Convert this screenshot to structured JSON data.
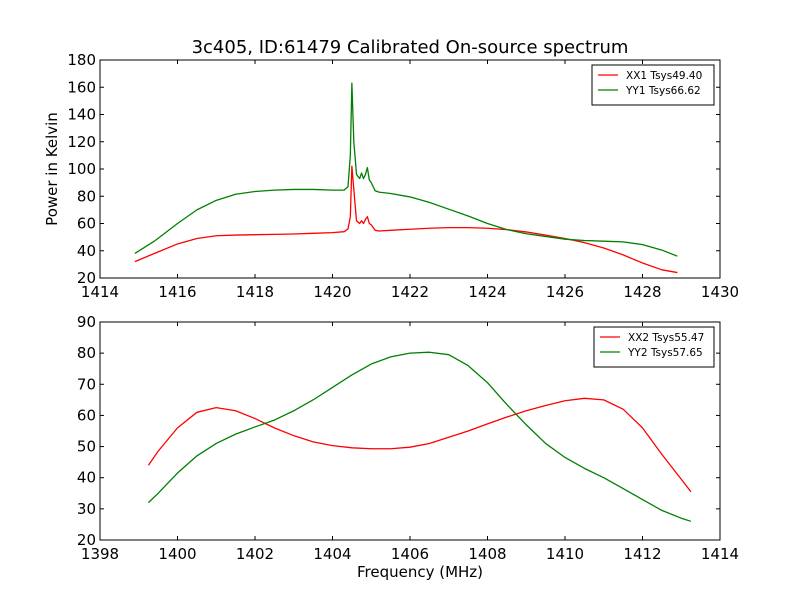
{
  "title": "3c405, ID:61479 Calibrated On-source spectrum",
  "chart_data": [
    {
      "type": "line",
      "title": "3c405, ID:61479 Calibrated On-source spectrum",
      "xlabel": "",
      "ylabel": "Power in Kelvin",
      "xlim": [
        1414,
        1430
      ],
      "ylim": [
        20,
        180
      ],
      "xticks": [
        "1414",
        "1416",
        "1418",
        "1420",
        "1422",
        "1424",
        "1426",
        "1428",
        "1430"
      ],
      "yticks": [
        "20",
        "40",
        "60",
        "80",
        "100",
        "120",
        "140",
        "160",
        "180"
      ],
      "grid": false,
      "legend_position": "top-right",
      "series": [
        {
          "name": "XX1 Tsys49.40",
          "color": "#ff0000",
          "x": [
            1414.9,
            1415.4,
            1416.0,
            1416.5,
            1417.0,
            1417.5,
            1418.0,
            1418.5,
            1419.0,
            1419.5,
            1420.0,
            1420.3,
            1420.4,
            1420.46,
            1420.5,
            1420.55,
            1420.62,
            1420.7,
            1420.75,
            1420.8,
            1420.85,
            1420.9,
            1420.95,
            1421.0,
            1421.1,
            1421.2,
            1421.5,
            1422.0,
            1422.5,
            1423.0,
            1423.5,
            1424.0,
            1424.5,
            1425.0,
            1425.5,
            1426.0,
            1426.5,
            1427.0,
            1427.5,
            1428.0,
            1428.5,
            1428.9
          ],
          "values": [
            32,
            38,
            45,
            49,
            51,
            51.5,
            51.8,
            52,
            52.3,
            52.8,
            53.3,
            54,
            56,
            65,
            102,
            85,
            62,
            60,
            62,
            60,
            63,
            65,
            60,
            59,
            55,
            54.5,
            55,
            55.8,
            56.5,
            57,
            57,
            56.5,
            55.5,
            53.8,
            51.5,
            49,
            46,
            42,
            37,
            31,
            26,
            24
          ]
        },
        {
          "name": "YY1 Tsys66.62",
          "color": "#008000",
          "x": [
            1414.9,
            1415.4,
            1416.0,
            1416.5,
            1417.0,
            1417.5,
            1418.0,
            1418.5,
            1419.0,
            1419.5,
            1420.0,
            1420.3,
            1420.4,
            1420.46,
            1420.5,
            1420.55,
            1420.62,
            1420.7,
            1420.75,
            1420.8,
            1420.85,
            1420.9,
            1420.95,
            1421.0,
            1421.1,
            1421.2,
            1421.5,
            1422.0,
            1422.5,
            1423.0,
            1423.5,
            1424.0,
            1424.5,
            1425.0,
            1425.5,
            1426.0,
            1426.5,
            1427.0,
            1427.5,
            1428.0,
            1428.5,
            1428.9
          ],
          "values": [
            38,
            47,
            60,
            70,
            77,
            81.5,
            83.5,
            84.5,
            85,
            85,
            84.5,
            84.5,
            87,
            110,
            163,
            120,
            96,
            93,
            97,
            93,
            96,
            101,
            92,
            90,
            84,
            83,
            82,
            79.5,
            75.5,
            70.5,
            65.5,
            60,
            55.5,
            52.5,
            50.5,
            48.5,
            47.5,
            47,
            46.5,
            44.5,
            40.5,
            36
          ]
        }
      ]
    },
    {
      "type": "line",
      "title": "",
      "xlabel": "Frequency (MHz)",
      "ylabel": "",
      "xlim": [
        1398,
        1414
      ],
      "ylim": [
        20,
        90
      ],
      "xticks": [
        "1398",
        "1400",
        "1402",
        "1404",
        "1406",
        "1408",
        "1410",
        "1412",
        "1414"
      ],
      "yticks": [
        "20",
        "30",
        "40",
        "50",
        "60",
        "70",
        "80",
        "90"
      ],
      "grid": false,
      "legend_position": "top-right",
      "series": [
        {
          "name": "XX2 Tsys55.47",
          "color": "#ff0000",
          "x": [
            1399.25,
            1399.5,
            1400.0,
            1400.5,
            1401.0,
            1401.5,
            1402.0,
            1402.5,
            1403.0,
            1403.5,
            1404.0,
            1404.5,
            1405.0,
            1405.5,
            1406.0,
            1406.5,
            1407.0,
            1407.5,
            1408.0,
            1408.5,
            1409.0,
            1409.5,
            1410.0,
            1410.5,
            1411.0,
            1411.5,
            1412.0,
            1412.5,
            1413.0,
            1413.25
          ],
          "values": [
            44,
            48.5,
            56,
            61,
            62.5,
            61.5,
            59,
            56,
            53.5,
            51.5,
            50.3,
            49.6,
            49.3,
            49.3,
            49.8,
            51,
            53,
            55,
            57.3,
            59.5,
            61.5,
            63.2,
            64.7,
            65.5,
            65,
            62,
            56,
            47.5,
            39.5,
            35.5
          ]
        },
        {
          "name": "YY2 Tsys57.65",
          "color": "#008000",
          "x": [
            1399.25,
            1399.5,
            1400.0,
            1400.5,
            1401.0,
            1401.5,
            1402.0,
            1402.5,
            1403.0,
            1403.5,
            1404.0,
            1404.5,
            1405.0,
            1405.5,
            1406.0,
            1406.5,
            1407.0,
            1407.5,
            1408.0,
            1408.5,
            1409.0,
            1409.5,
            1410.0,
            1410.5,
            1411.0,
            1411.5,
            1412.0,
            1412.5,
            1413.0,
            1413.25
          ],
          "values": [
            32,
            35,
            41.5,
            47,
            51,
            54,
            56.3,
            58.5,
            61.5,
            65,
            69,
            73,
            76.5,
            78.8,
            80,
            80.3,
            79.5,
            76,
            70.5,
            63.5,
            57,
            51,
            46.5,
            43,
            40,
            36.5,
            33,
            29.5,
            27,
            26
          ]
        }
      ]
    }
  ]
}
